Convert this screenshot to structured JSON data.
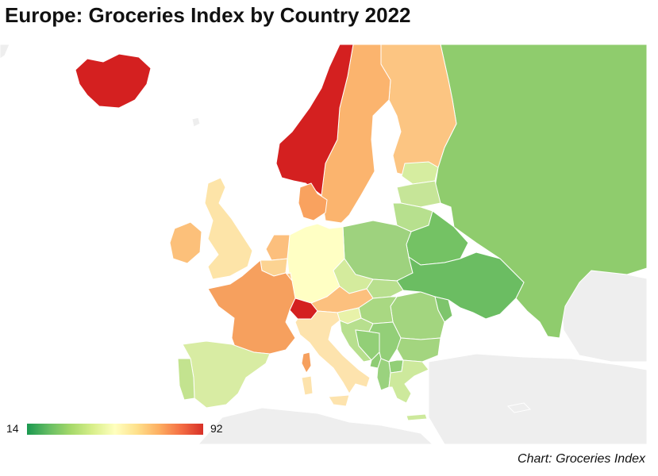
{
  "title": "Europe: Groceries Index by Country 2022",
  "credit": "Chart: Groceries Index",
  "legend": {
    "min": "14",
    "max": "92",
    "colors": [
      "#1a9850",
      "#66bd63",
      "#a6d96a",
      "#d9ef8b",
      "#ffffbf",
      "#fee08b",
      "#fdae61",
      "#f46d43",
      "#d73027"
    ]
  },
  "colors": {
    "no_data": "#eeeeee",
    "border": "#ffffff",
    "sea": "#ffffff"
  },
  "chart_data": {
    "type": "choropleth",
    "scale": {
      "min": 14,
      "max": 92
    },
    "regions": [
      {
        "name": "Iceland",
        "color": "#d42020"
      },
      {
        "name": "Norway",
        "color": "#d42020"
      },
      {
        "name": "Switzerland",
        "color": "#d42020"
      },
      {
        "name": "Sweden",
        "color": "#fbb46e"
      },
      {
        "name": "Finland",
        "color": "#fcc582"
      },
      {
        "name": "Denmark",
        "color": "#f9a25f"
      },
      {
        "name": "France",
        "color": "#f6a05e"
      },
      {
        "name": "Ireland",
        "color": "#fcc07a"
      },
      {
        "name": "Netherlands",
        "color": "#fcbf7d"
      },
      {
        "name": "Belgium",
        "color": "#fcd392"
      },
      {
        "name": "Luxembourg",
        "color": "#fcc888"
      },
      {
        "name": "Austria",
        "color": "#fcc07e"
      },
      {
        "name": "Corsica",
        "color": "#f6a05e"
      },
      {
        "name": "United Kingdom",
        "color": "#fde4a8"
      },
      {
        "name": "Italy",
        "color": "#fde3ad"
      },
      {
        "name": "Germany",
        "color": "#ffffc4"
      },
      {
        "name": "Slovenia",
        "color": "#e8f2a9"
      },
      {
        "name": "Spain",
        "color": "#d8eca3"
      },
      {
        "name": "Portugal",
        "color": "#c3e38f"
      },
      {
        "name": "Czechia",
        "color": "#d4eb9d"
      },
      {
        "name": "Estonia",
        "color": "#d6eda0"
      },
      {
        "name": "Latvia",
        "color": "#c6e598"
      },
      {
        "name": "Lithuania",
        "color": "#b7e08e"
      },
      {
        "name": "Slovakia",
        "color": "#b8df8e"
      },
      {
        "name": "Hungary",
        "color": "#a9d882"
      },
      {
        "name": "Croatia",
        "color": "#b7df8e"
      },
      {
        "name": "Greece",
        "color": "#cde99c"
      },
      {
        "name": "Poland",
        "color": "#9ed27e"
      },
      {
        "name": "Romania",
        "color": "#a3d57f"
      },
      {
        "name": "Bulgaria",
        "color": "#a3d57f"
      },
      {
        "name": "Serbia",
        "color": "#93cf78"
      },
      {
        "name": "Bosnia and Herzegovina",
        "color": "#92cf77"
      },
      {
        "name": "Montenegro",
        "color": "#8ecc74"
      },
      {
        "name": "Albania",
        "color": "#9ad27e"
      },
      {
        "name": "North Macedonia",
        "color": "#92cf77"
      },
      {
        "name": "Moldova",
        "color": "#7ec56c"
      },
      {
        "name": "Russia",
        "color": "#8fcc6d"
      },
      {
        "name": "Belarus",
        "color": "#74c264"
      },
      {
        "name": "Ukraine",
        "color": "#6bbd62"
      }
    ]
  }
}
